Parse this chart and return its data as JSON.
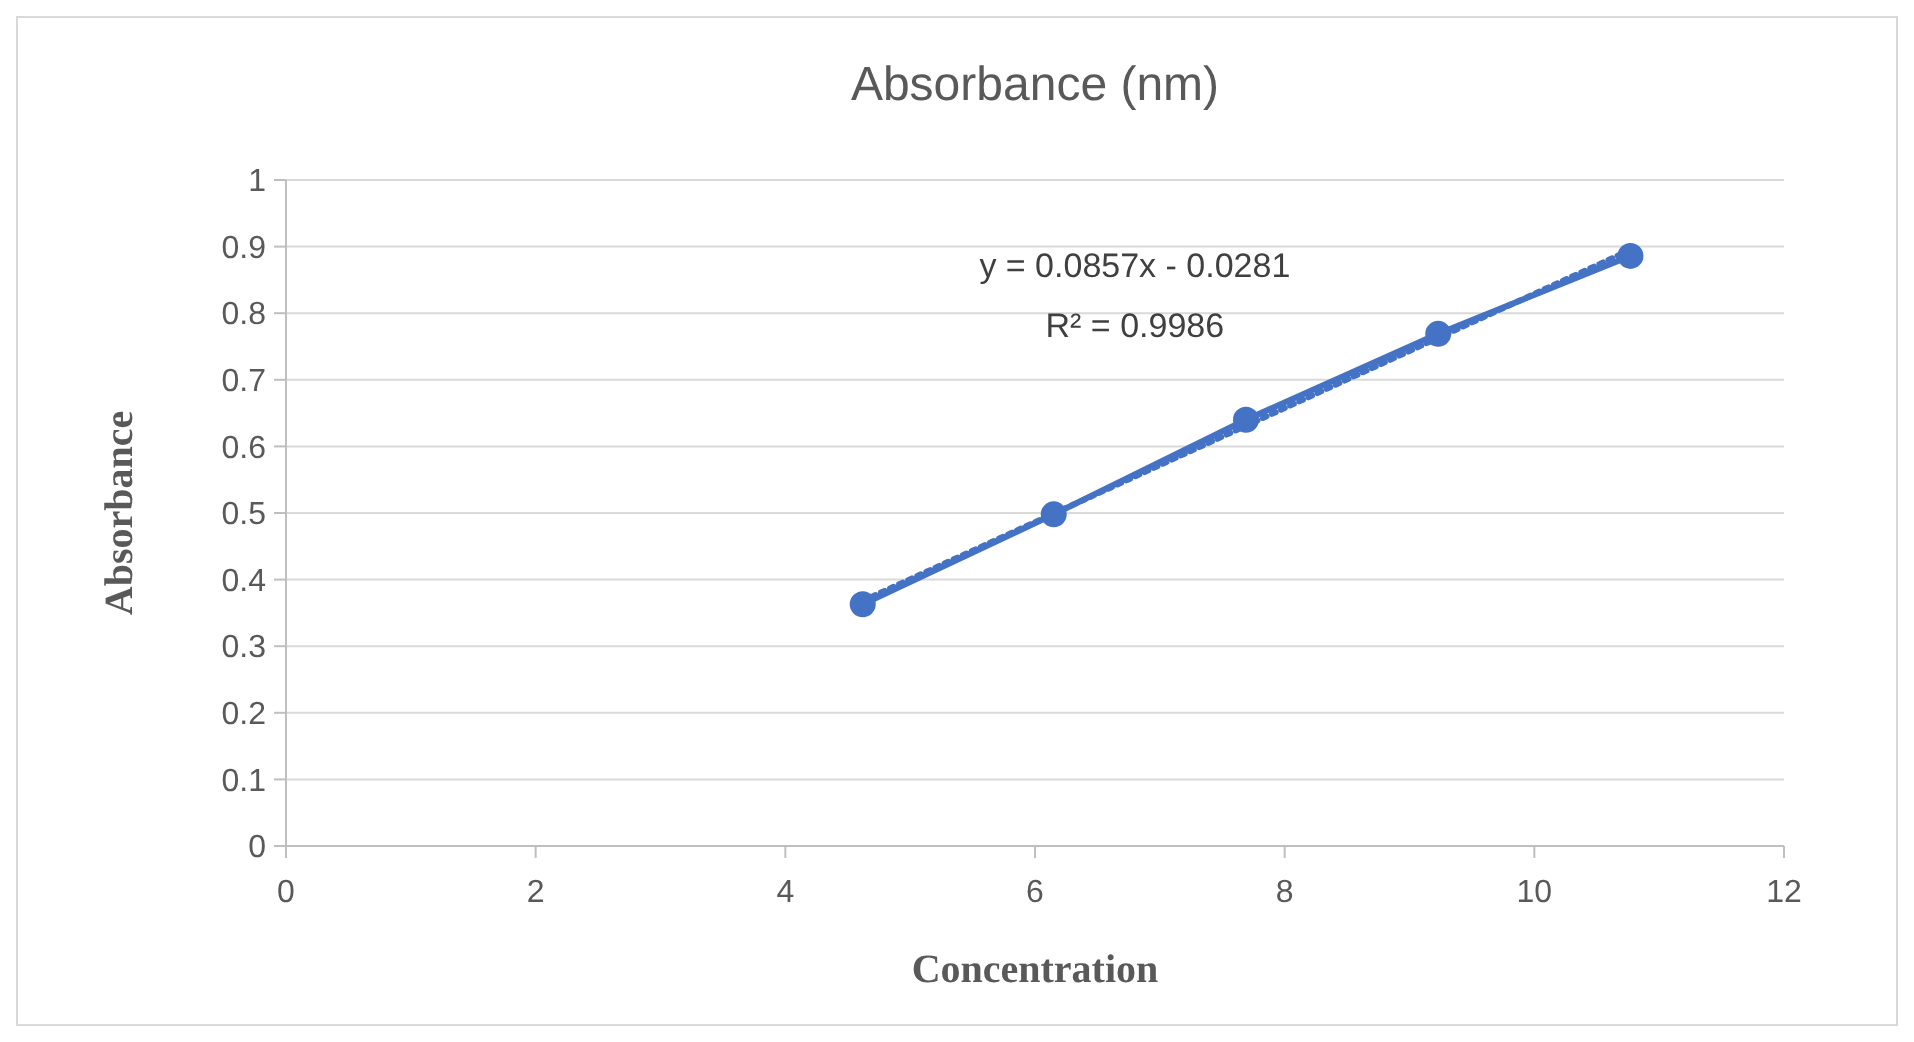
{
  "chart_data": {
    "type": "line",
    "title": "Absorbance (nm)",
    "xlabel": "Concentration",
    "ylabel": "Absorbance",
    "xlim": [
      0,
      12
    ],
    "xticks": [
      0,
      2,
      4,
      6,
      8,
      10,
      12
    ],
    "ylim": [
      0,
      1
    ],
    "yticks": [
      0,
      0.1,
      0.2,
      0.3,
      0.4,
      0.5,
      0.6,
      0.7,
      0.8,
      0.9,
      1
    ],
    "grid": "y",
    "series": [
      {
        "color": "#4472c4",
        "marker": "circle",
        "line_style": "solid",
        "x": [
          4.62,
          6.15,
          7.69,
          9.23,
          10.77
        ],
        "values": [
          0.363,
          0.498,
          0.64,
          0.769,
          0.886
        ]
      },
      {
        "color": "#4472c4",
        "marker": "none",
        "line_style": "dotted",
        "x": [
          4.62,
          10.77
        ],
        "values": [
          0.368,
          0.895
        ]
      }
    ],
    "annotations": [
      "y = 0.0857x - 0.0281",
      "R² = 0.9986"
    ]
  }
}
